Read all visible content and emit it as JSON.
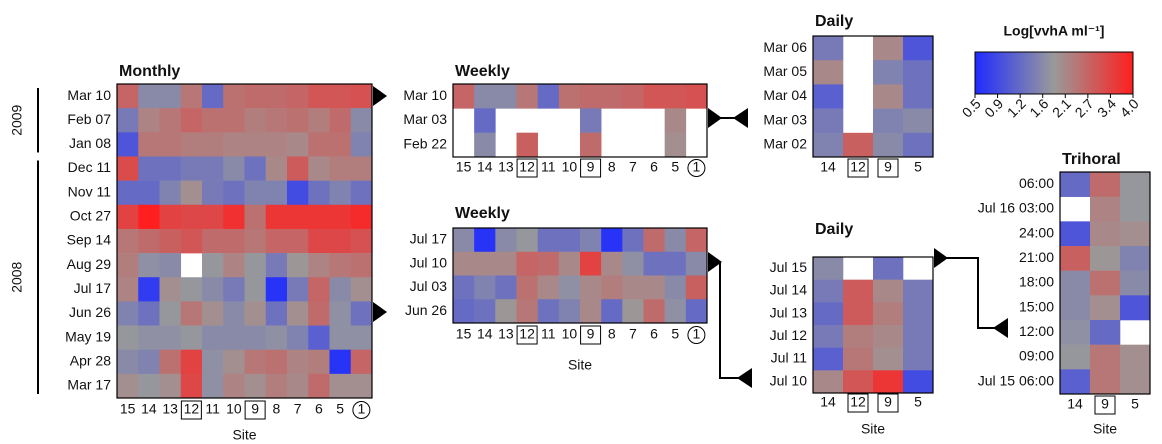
{
  "chart_data": [
    {
      "type": "heatmap",
      "title": "Monthly",
      "x_label": "Site",
      "categories": [
        "15",
        "14",
        "13",
        "12",
        "11",
        "10",
        "9",
        "8",
        "7",
        "6",
        "5",
        "1"
      ],
      "rows": [
        "Mar 10",
        "Feb 07",
        "Jan 08",
        "Dec 11",
        "Nov 11",
        "Oct 27",
        "Sep 14",
        "Aug 29",
        "Jul 17",
        "Jun 26",
        "May 19",
        "Apr 28",
        "Mar 17"
      ],
      "groups": [
        {
          "label": "2009",
          "from": "Mar 10",
          "to": "Jan 08"
        },
        {
          "label": "2008",
          "from": "Dec 11",
          "to": "Mar 17"
        }
      ],
      "values": [
        [
          2.7,
          1.6,
          1.6,
          2.4,
          1.2,
          2.5,
          2.6,
          2.6,
          2.7,
          3.0,
          3.0,
          3.1
        ],
        [
          1.4,
          2.2,
          2.4,
          2.7,
          2.5,
          2.5,
          2.3,
          2.4,
          2.5,
          2.3,
          2.6,
          1.6
        ],
        [
          1.0,
          2.4,
          2.4,
          2.3,
          2.3,
          2.2,
          2.2,
          2.2,
          2.1,
          2.5,
          2.5,
          1.5
        ],
        [
          3.2,
          1.3,
          1.3,
          1.4,
          1.4,
          1.6,
          1.3,
          2.1,
          2.9,
          2.1,
          2.3,
          2.3
        ],
        [
          1.2,
          1.2,
          1.5,
          2.0,
          1.4,
          1.3,
          1.5,
          1.5,
          0.9,
          1.3,
          1.5,
          1.3
        ],
        [
          3.4,
          4.0,
          3.4,
          3.3,
          3.3,
          3.7,
          2.5,
          3.6,
          3.6,
          3.6,
          3.6,
          3.8
        ],
        [
          2.4,
          2.6,
          2.8,
          3.0,
          2.6,
          2.6,
          2.4,
          2.7,
          2.7,
          3.3,
          3.3,
          3.1
        ],
        [
          2.3,
          1.7,
          1.6,
          null,
          1.8,
          2.2,
          1.8,
          1.4,
          1.9,
          2.2,
          2.4,
          2.5
        ],
        [
          2.2,
          0.7,
          2.0,
          1.8,
          1.6,
          1.4,
          1.8,
          0.6,
          1.4,
          2.7,
          1.6,
          2.0
        ],
        [
          1.5,
          1.3,
          1.8,
          2.4,
          2.0,
          1.6,
          2.0,
          1.3,
          2.0,
          2.6,
          1.7,
          1.3
        ],
        [
          1.8,
          1.7,
          1.7,
          1.8,
          1.6,
          1.6,
          1.6,
          1.7,
          1.5,
          1.1,
          1.7,
          1.7
        ],
        [
          1.6,
          1.5,
          2.5,
          3.4,
          1.7,
          2.0,
          2.4,
          2.5,
          2.2,
          2.3,
          0.6,
          2.7
        ],
        [
          2.0,
          1.8,
          2.0,
          3.3,
          1.7,
          2.2,
          2.0,
          2.3,
          2.1,
          2.6,
          2.0,
          2.0
        ]
      ]
    },
    {
      "type": "heatmap",
      "title": "Weekly",
      "categories": [
        "15",
        "14",
        "13",
        "12",
        "11",
        "10",
        "9",
        "8",
        "7",
        "6",
        "5",
        "1"
      ],
      "rows": [
        "Mar 10",
        "Mar 03",
        "Feb 22"
      ],
      "values": [
        [
          2.7,
          1.6,
          1.6,
          2.4,
          1.2,
          2.5,
          2.6,
          2.6,
          2.7,
          3.0,
          3.0,
          3.1
        ],
        [
          null,
          1.2,
          null,
          null,
          null,
          null,
          1.4,
          null,
          null,
          null,
          2.1,
          null
        ],
        [
          null,
          1.6,
          null,
          2.8,
          null,
          null,
          2.6,
          null,
          null,
          null,
          2.0,
          null
        ]
      ]
    },
    {
      "type": "heatmap",
      "title": "Weekly",
      "x_label": "Site",
      "categories": [
        "15",
        "14",
        "13",
        "12",
        "11",
        "10",
        "9",
        "8",
        "7",
        "6",
        "5",
        "1"
      ],
      "rows": [
        "Jul 17",
        "Jul 10",
        "Jul 03",
        "Jun 26"
      ],
      "values": [
        [
          1.6,
          0.6,
          1.6,
          1.8,
          1.3,
          1.3,
          1.5,
          0.6,
          1.3,
          2.6,
          1.6,
          2.7
        ],
        [
          2.1,
          2.1,
          2.1,
          2.7,
          2.6,
          2.1,
          3.4,
          2.1,
          1.7,
          1.3,
          1.3,
          1.6
        ],
        [
          1.3,
          1.5,
          1.3,
          2.5,
          2.1,
          1.7,
          2.1,
          2.3,
          2.1,
          2.1,
          1.6,
          2.8
        ],
        [
          1.2,
          1.3,
          1.9,
          2.4,
          1.3,
          1.5,
          2.1,
          1.2,
          1.9,
          2.6,
          1.7,
          1.2
        ]
      ]
    },
    {
      "type": "heatmap",
      "title": "Daily",
      "categories": [
        "14",
        "12",
        "9",
        "5"
      ],
      "rows": [
        "Mar 06",
        "Mar 05",
        "Mar 04",
        "Mar 03",
        "Mar 02"
      ],
      "values": [
        [
          1.4,
          null,
          2.1,
          1.0
        ],
        [
          2.1,
          null,
          1.5,
          1.3
        ],
        [
          1.1,
          null,
          2.1,
          1.3
        ],
        [
          1.4,
          null,
          1.5,
          1.6
        ],
        [
          1.5,
          2.8,
          1.6,
          1.3
        ]
      ]
    },
    {
      "type": "heatmap",
      "title": "Daily",
      "x_label": "Site",
      "categories": [
        "14",
        "12",
        "9",
        "5"
      ],
      "rows": [
        "Jul 15",
        "Jul 14",
        "Jul 13",
        "Jul 12",
        "Jul 11",
        "Jul 10"
      ],
      "values": [
        [
          1.6,
          null,
          1.3,
          null
        ],
        [
          1.4,
          2.9,
          2.1,
          1.4
        ],
        [
          1.2,
          2.9,
          2.3,
          1.4
        ],
        [
          1.4,
          2.3,
          2.1,
          1.4
        ],
        [
          1.1,
          2.4,
          2.0,
          1.4
        ],
        [
          2.1,
          3.0,
          3.6,
          0.9
        ]
      ]
    },
    {
      "type": "heatmap",
      "title": "Trihoral",
      "x_label": "Site",
      "categories": [
        "14",
        "9",
        "5"
      ],
      "rows": [
        "06:00",
        "Jul 16 03:00",
        "24:00",
        "21:00",
        "18:00",
        "15:00",
        "12:00",
        "09:00",
        "Jul 15 06:00"
      ],
      "values": [
        [
          1.2,
          2.6,
          1.8
        ],
        [
          null,
          2.2,
          1.8
        ],
        [
          1.0,
          2.1,
          2.0
        ],
        [
          2.8,
          1.9,
          1.5
        ],
        [
          1.6,
          2.5,
          1.6
        ],
        [
          1.6,
          2.0,
          1.0
        ],
        [
          1.7,
          1.2,
          null
        ],
        [
          1.8,
          2.4,
          2.0
        ],
        [
          1.1,
          2.4,
          2.0
        ]
      ]
    }
  ],
  "highlight": {
    "boxed": [
      "12",
      "9"
    ],
    "circled": [
      "1"
    ]
  },
  "colorbar": {
    "title": "Log[vvhA ml⁻¹]",
    "lim": [
      0.5,
      {
        "value": 4,
        "label": "4.0"
      }
    ],
    "ticks": [
      0.5,
      0.9,
      1.2,
      1.6,
      2.1,
      2.7,
      3.4,
      {
        "value": 4,
        "label": "4.0"
      }
    ],
    "colors": [
      "#1f2bff",
      "#9a9a9a",
      "#ff1f1f"
    ]
  }
}
